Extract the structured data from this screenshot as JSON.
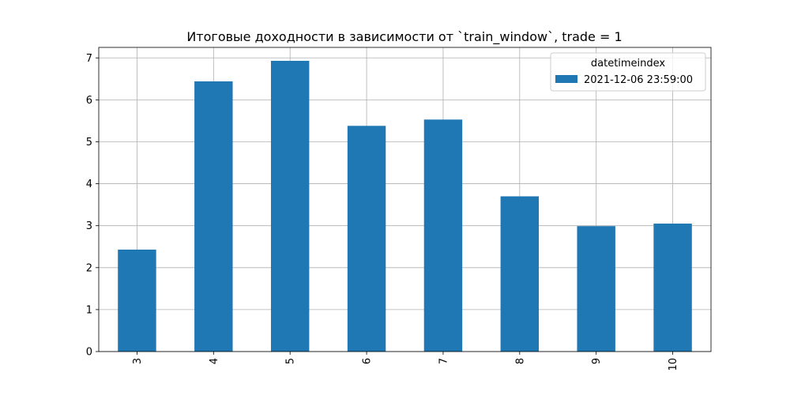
{
  "chart_data": {
    "type": "bar",
    "title": "Итоговые доходности в зависимости от `train_window`,   trade = 1",
    "xlabel": "",
    "ylabel": "",
    "categories": [
      "3",
      "4",
      "5",
      "6",
      "7",
      "8",
      "9",
      "10"
    ],
    "series": [
      {
        "name": "2021-12-06 23:59:00",
        "values": [
          2.43,
          6.44,
          6.93,
          5.38,
          5.53,
          3.7,
          2.99,
          3.05
        ],
        "color": "#1f77b4"
      }
    ],
    "ylim": [
      0,
      7.25
    ],
    "yticks": [
      0,
      1,
      2,
      3,
      4,
      5,
      6,
      7
    ],
    "grid": true,
    "legend": {
      "title": "datetimeindex",
      "placement": "top-right"
    },
    "xtick_rotation": "vertical"
  }
}
